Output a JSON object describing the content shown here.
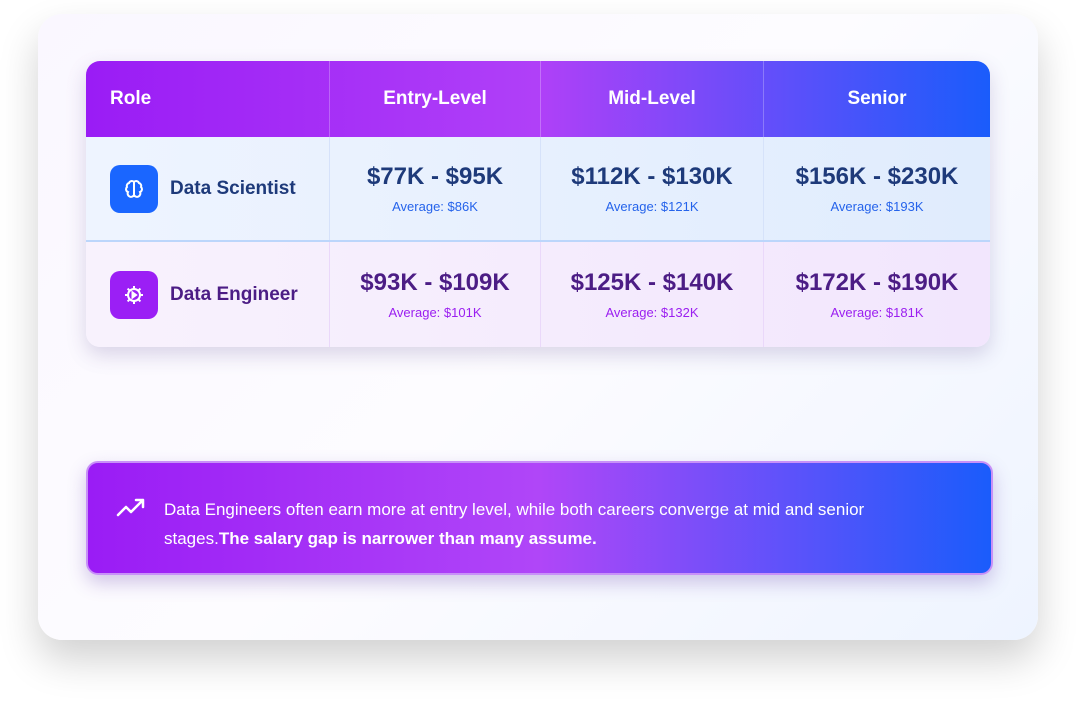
{
  "table": {
    "headers": [
      "Role",
      "Entry-Level",
      "Mid-Level",
      "Senior"
    ],
    "rows": [
      {
        "role": "Data Scientist",
        "icon": "brain-icon",
        "icon_color": "#1a66ff",
        "cells": [
          {
            "range": "$77K - $95K",
            "avg": "Average: $86K"
          },
          {
            "range": "$112K - $130K",
            "avg": "Average: $121K"
          },
          {
            "range": "$156K - $230K",
            "avg": "Average: $193K"
          }
        ]
      },
      {
        "role": "Data Engineer",
        "icon": "gear-icon",
        "icon_color": "#9b1ff5",
        "cells": [
          {
            "range": "$93K - $109K",
            "avg": "Average: $101K"
          },
          {
            "range": "$125K - $140K",
            "avg": "Average: $132K"
          },
          {
            "range": "$172K - $190K",
            "avg": "Average: $181K"
          }
        ]
      }
    ]
  },
  "callout": {
    "icon": "trending-up-icon",
    "text": "Data Engineers often earn more at entry level, while both careers converge at mid and senior stages.",
    "bold": "The salary gap is narrower than many assume."
  }
}
